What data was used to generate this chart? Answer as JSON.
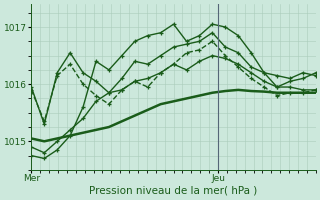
{
  "title": "Pression niveau de la mer( hPa )",
  "bg_color": "#cce8dc",
  "grid_color": "#aaccbb",
  "line_color": "#1a5c1a",
  "ylim": [
    1014.5,
    1017.4
  ],
  "yticks": [
    1015,
    1016,
    1017
  ],
  "xlim": [
    0,
    32
  ],
  "mer_x": 0,
  "jeu_x": 21,
  "ver_line_x": 21,
  "series": [
    {
      "y": [
        1015.95,
        1015.3,
        1016.2,
        1016.55,
        1016.2,
        1016.05,
        1015.85,
        1016.1,
        1016.4,
        1016.35,
        1016.5,
        1016.65,
        1016.7,
        1016.75,
        1016.9,
        1016.65,
        1016.55,
        1016.3,
        1016.2,
        1015.95,
        1016.05,
        1016.1,
        1016.2
      ],
      "lw": 1.0,
      "ls": "-",
      "marker": "+"
    },
    {
      "y": [
        1015.9,
        1015.35,
        1016.15,
        1016.35,
        1016.0,
        1015.8,
        1015.65,
        1015.9,
        1016.05,
        1015.95,
        1016.2,
        1016.35,
        1016.55,
        1016.6,
        1016.75,
        1016.5,
        1016.3,
        1016.1,
        1015.95,
        1015.8,
        1015.85,
        1015.85,
        1015.9
      ],
      "lw": 1.0,
      "ls": "--",
      "marker": "+"
    },
    {
      "y": [
        1014.75,
        1014.7,
        1014.85,
        1015.1,
        1015.6,
        1016.4,
        1016.25,
        1016.5,
        1016.75,
        1016.85,
        1016.9,
        1017.05,
        1016.75,
        1016.85,
        1017.05,
        1017.0,
        1016.85,
        1016.55,
        1016.2,
        1016.15,
        1016.1,
        1016.2,
        1016.15
      ],
      "lw": 1.0,
      "ls": "-",
      "marker": "+"
    },
    {
      "y": [
        1014.9,
        1014.8,
        1015.0,
        1015.2,
        1015.4,
        1015.7,
        1015.85,
        1015.9,
        1016.05,
        1016.1,
        1016.2,
        1016.35,
        1016.25,
        1016.4,
        1016.5,
        1016.45,
        1016.35,
        1016.2,
        1016.05,
        1015.95,
        1015.95,
        1015.9,
        1015.9
      ],
      "lw": 1.0,
      "ls": "-",
      "marker": "+"
    },
    {
      "y": [
        1015.05,
        1015.0,
        1015.05,
        1015.1,
        1015.15,
        1015.2,
        1015.25,
        1015.35,
        1015.45,
        1015.55,
        1015.65,
        1015.7,
        1015.75,
        1015.8,
        1015.85,
        1015.88,
        1015.9,
        1015.88,
        1015.87,
        1015.85,
        1015.85,
        1015.85,
        1015.85
      ],
      "lw": 1.8,
      "ls": "-",
      "marker": null
    }
  ],
  "xtick_positions": [
    0,
    21
  ],
  "xtick_labels": [
    "Mer",
    "Jeu"
  ]
}
